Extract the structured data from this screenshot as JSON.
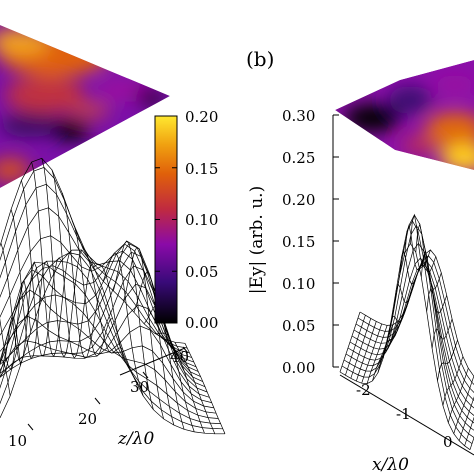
{
  "panel_b_label": "(b)",
  "colors": {
    "colormap": [
      "#000000",
      "#3a0a7a",
      "#8a0aa8",
      "#c02a40",
      "#e0600a",
      "#f0a010",
      "#ffe830"
    ]
  },
  "chart_data": [
    {
      "type": "surface",
      "panel": "a",
      "title": "",
      "xlabel": "z/λ0",
      "x_ticks": [
        "10",
        "20",
        "30",
        "40"
      ],
      "xlim": [
        5,
        40
      ],
      "ylabel": "",
      "colorbar": {
        "ticks": [
          "0.00",
          "0.05",
          "0.10",
          "0.15",
          "0.20"
        ],
        "range": [
          0.0,
          0.2
        ]
      },
      "projection": "top-view colormap"
    },
    {
      "type": "surface",
      "panel": "b",
      "title": "",
      "xlabel": "x/λ0",
      "x_ticks": [
        "-2",
        "-1",
        "0"
      ],
      "ylabel": "|Ey| (arb. u.)",
      "z_ticks": [
        "0.00",
        "0.05",
        "0.10",
        "0.15",
        "0.20",
        "0.25",
        "0.30"
      ],
      "zlim": [
        0.0,
        0.3
      ],
      "projection": "top-view colormap"
    }
  ]
}
